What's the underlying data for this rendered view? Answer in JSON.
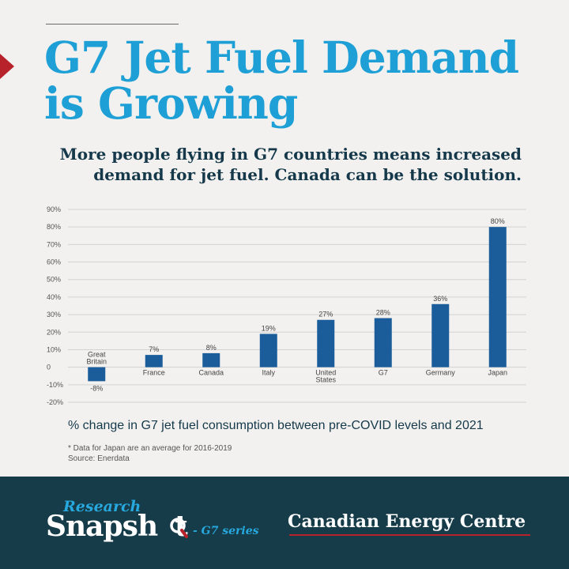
{
  "title": "G7 Jet Fuel Demand is Growing",
  "subtitle": "More people flying in G7 countries means increased demand for jet fuel. Canada can be the solution.",
  "caption": "% change in G7 jet fuel consumption between pre-COVID levels and 2021",
  "footnote": "* Data for Japan are an average for 2016-2019",
  "source": "Source: Enerdata",
  "footer": {
    "research": "Research",
    "snapshot": "Snapsh",
    "snapshot_end": "t",
    "series": "- G7 series",
    "organization": "Canadian Energy Centre"
  },
  "colors": {
    "title": "#1ea0d6",
    "bar": "#1b5d9b",
    "footer_bg": "#163c49",
    "accent": "#b8222b"
  },
  "chart_data": {
    "type": "bar",
    "categories": [
      [
        "Great",
        "Britain"
      ],
      [
        "France"
      ],
      [
        "Canada"
      ],
      [
        "Italy"
      ],
      [
        "United",
        "States"
      ],
      [
        "G7"
      ],
      [
        "Germany"
      ],
      [
        "Japan"
      ]
    ],
    "values": [
      -8,
      7,
      8,
      19,
      27,
      28,
      36,
      80
    ],
    "value_labels": [
      "-8%",
      "7%",
      "8%",
      "19%",
      "27%",
      "28%",
      "36%",
      "80%"
    ],
    "y_ticks": [
      90,
      80,
      70,
      60,
      50,
      40,
      30,
      20,
      10,
      0,
      -10,
      -20
    ],
    "y_tick_labels": [
      "90%",
      "80%",
      "70%",
      "60%",
      "50%",
      "40%",
      "30%",
      "20%",
      "10%",
      "0",
      "-10%",
      "-20%"
    ],
    "ylim": [
      -20,
      90
    ],
    "grid": true,
    "unit": "%"
  }
}
